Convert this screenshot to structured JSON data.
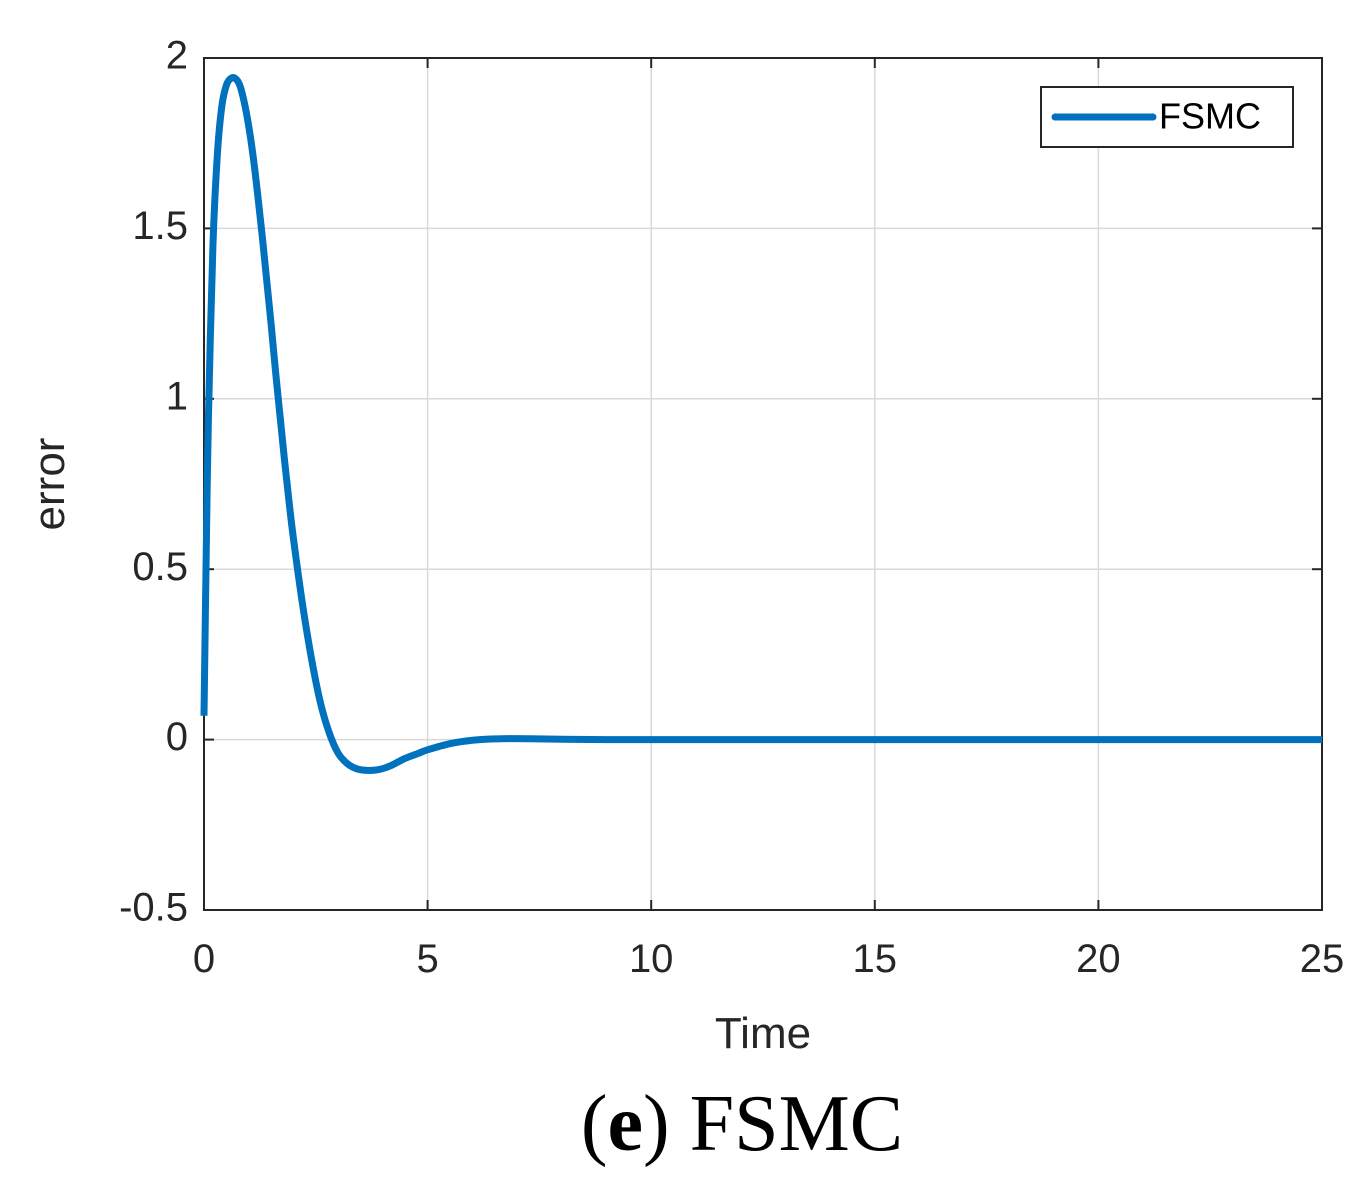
{
  "caption": {
    "open_paren": "(",
    "letter": "e",
    "close_paren": ")",
    "title": "FSMC"
  },
  "colors": {
    "series": "#0072BD",
    "grid": "#d9d9d9",
    "axis": "#262626"
  },
  "chart_data": {
    "type": "line",
    "xlabel": "Time",
    "ylabel": "error",
    "xlim": [
      0,
      25
    ],
    "ylim": [
      -0.5,
      2
    ],
    "xticks": [
      0,
      5,
      10,
      15,
      20,
      25
    ],
    "xtick_labels": [
      "0",
      "5",
      "10",
      "15",
      "20",
      "25"
    ],
    "yticks": [
      -0.5,
      0,
      0.5,
      1,
      1.5,
      2
    ],
    "ytick_labels": [
      "-0.5",
      "0",
      "0.5",
      "1",
      "1.5",
      "2"
    ],
    "grid": true,
    "legend_position": "top-right",
    "series": [
      {
        "name": "FSMC",
        "color": "#0072BD",
        "x": [
          0,
          0.05,
          0.1,
          0.2,
          0.3,
          0.4,
          0.5,
          0.6,
          0.7,
          0.8,
          0.9,
          1.0,
          1.1,
          1.2,
          1.3,
          1.4,
          1.5,
          1.6,
          1.7,
          1.8,
          1.9,
          2.0,
          2.2,
          2.4,
          2.6,
          2.8,
          3.0,
          3.2,
          3.4,
          3.6,
          3.8,
          4.0,
          4.2,
          4.5,
          4.8,
          5.0,
          5.5,
          6.0,
          6.5,
          7.0,
          7.5,
          8.0,
          9.0,
          10.0,
          12.0,
          15.0,
          20.0,
          25.0
        ],
        "y": [
          0.07,
          0.55,
          0.95,
          1.45,
          1.72,
          1.86,
          1.92,
          1.94,
          1.94,
          1.92,
          1.87,
          1.8,
          1.71,
          1.6,
          1.48,
          1.35,
          1.22,
          1.08,
          0.95,
          0.82,
          0.7,
          0.59,
          0.4,
          0.24,
          0.11,
          0.02,
          -0.04,
          -0.07,
          -0.085,
          -0.09,
          -0.09,
          -0.085,
          -0.075,
          -0.055,
          -0.04,
          -0.03,
          -0.012,
          -0.002,
          0.002,
          0.003,
          0.002,
          0.001,
          0.0,
          0.0,
          0.0,
          0.0,
          0.0,
          0.0
        ]
      }
    ]
  }
}
